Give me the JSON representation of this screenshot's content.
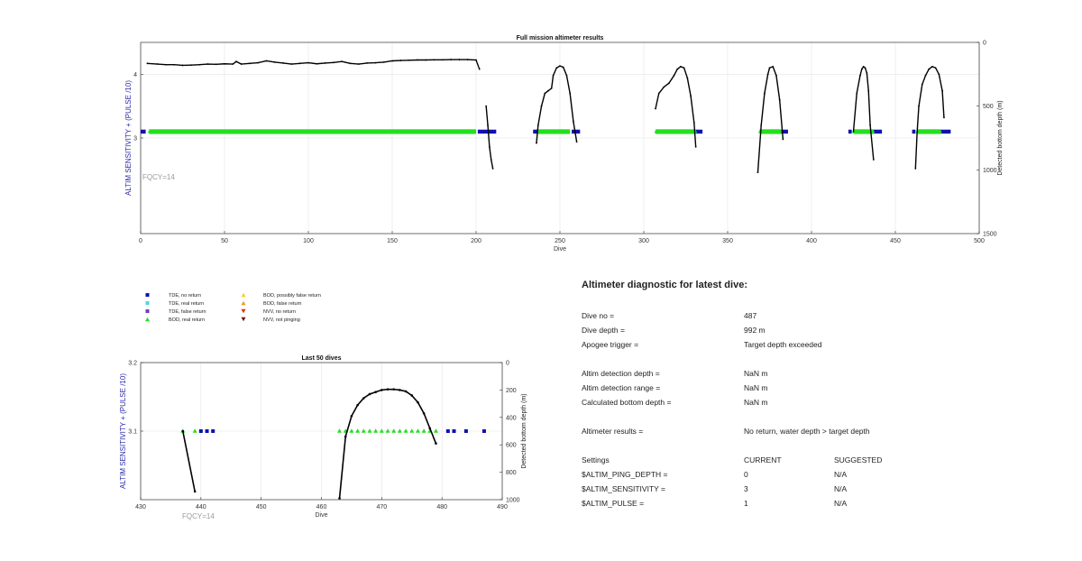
{
  "chart_data": [
    {
      "type": "scatter",
      "title": "Full mission altimeter results",
      "xlabel": "Dive",
      "ylabel": "ALTIM SENSITIVITY + (PULSE /10)",
      "y2label": "Detected bottom depth (m)",
      "xlim": [
        0,
        500
      ],
      "ylim": [
        1.5,
        4.5
      ],
      "y2lim": [
        1500,
        0
      ],
      "xticks": [
        "0",
        "50",
        "100",
        "150",
        "200",
        "250",
        "300",
        "350",
        "400",
        "450",
        "500"
      ],
      "yticks": [
        "3",
        "4"
      ],
      "y2ticks": [
        "0",
        "500",
        "1000",
        "1500"
      ],
      "grid": true,
      "annotation": "FQCY=14",
      "marker_value": 3.1,
      "tde_no_return_ranges": [
        [
          0,
          3
        ],
        [
          201,
          212
        ],
        [
          234,
          237
        ],
        [
          257,
          262
        ],
        [
          331,
          335
        ],
        [
          382,
          386
        ],
        [
          422,
          424
        ],
        [
          437,
          442
        ],
        [
          460,
          462
        ],
        [
          477,
          483
        ]
      ],
      "bod_real_return_ranges": [
        [
          5,
          200
        ],
        [
          237,
          256
        ],
        [
          307,
          331
        ],
        [
          369,
          382
        ],
        [
          425,
          437
        ],
        [
          463,
          477
        ]
      ],
      "depth_series": [
        {
          "dives": [
            4,
            10,
            15,
            20,
            25,
            30,
            35,
            40,
            45,
            50,
            55,
            57,
            60,
            65,
            70,
            75,
            80,
            85,
            90,
            95,
            100,
            105,
            110,
            115,
            120,
            125,
            130,
            135,
            140,
            145,
            150,
            155,
            160,
            165,
            170,
            175,
            180,
            185,
            190,
            195,
            200,
            202
          ],
          "depth": [
            165,
            170,
            175,
            175,
            180,
            178,
            175,
            170,
            172,
            168,
            170,
            150,
            170,
            165,
            160,
            145,
            155,
            162,
            170,
            165,
            160,
            168,
            162,
            158,
            150,
            165,
            170,
            162,
            160,
            155,
            145,
            142,
            140,
            138,
            138,
            137,
            137,
            135,
            135,
            135,
            138,
            210
          ]
        },
        {
          "dives": [
            206,
            207,
            208,
            209,
            210
          ],
          "depth": [
            500,
            650,
            820,
            920,
            990
          ]
        },
        {
          "dives": [
            236,
            237,
            239,
            241,
            243,
            245,
            246,
            248,
            250,
            252,
            254,
            256,
            258,
            260
          ],
          "depth": [
            790,
            650,
            500,
            400,
            380,
            360,
            260,
            200,
            185,
            195,
            260,
            400,
            620,
            780
          ]
        },
        {
          "dives": [
            307,
            309,
            312,
            315,
            318,
            320,
            322,
            324,
            326,
            328,
            330,
            331
          ],
          "depth": [
            520,
            400,
            350,
            320,
            260,
            210,
            190,
            200,
            280,
            420,
            630,
            820
          ]
        },
        {
          "dives": [
            368,
            370,
            372,
            374,
            375,
            377,
            379,
            381,
            383
          ],
          "depth": [
            1020,
            650,
            400,
            250,
            200,
            190,
            260,
            450,
            760
          ]
        },
        {
          "dives": [
            425,
            427,
            429,
            430,
            431,
            432,
            433,
            434,
            435,
            437
          ],
          "depth": [
            700,
            400,
            260,
            210,
            190,
            200,
            240,
            380,
            650,
            920
          ]
        },
        {
          "dives": [
            462,
            463,
            464,
            466,
            468,
            470,
            472,
            474,
            476,
            478,
            479
          ],
          "depth": [
            990,
            700,
            500,
            330,
            260,
            210,
            190,
            200,
            250,
            380,
            590
          ]
        }
      ]
    },
    {
      "type": "scatter",
      "title": "Last 50 dives",
      "xlabel": "Dive",
      "ylabel": "ALTIM SENSITIVITY + (PULSE /10)",
      "y2label": "Detected bottom depth (m)",
      "xlim": [
        430,
        490
      ],
      "ylim": [
        3.0,
        3.2
      ],
      "y2lim": [
        1000,
        0
      ],
      "xticks": [
        "430",
        "440",
        "450",
        "460",
        "470",
        "480",
        "490"
      ],
      "yticks": [
        "3.1",
        "3.2"
      ],
      "y2ticks": [
        "0",
        "200",
        "400",
        "600",
        "800",
        "1000"
      ],
      "grid": true,
      "annotation": "FQCY=14",
      "marker_value": 3.1,
      "tde_no_return_dives": [
        440,
        441,
        442,
        481,
        482,
        484,
        487
      ],
      "bod_real_return_dives": [
        437,
        439,
        463,
        464,
        465,
        466,
        467,
        468,
        469,
        470,
        471,
        472,
        473,
        474,
        475,
        476,
        477,
        478,
        479
      ],
      "depth_series": [
        {
          "dives": [
            437,
            439
          ],
          "depth": [
            500,
            940
          ]
        },
        {
          "dives": [
            463,
            464,
            465,
            466,
            467,
            468,
            469,
            470,
            471,
            472,
            473,
            474,
            475,
            476,
            477,
            478,
            479
          ],
          "depth": [
            990,
            540,
            390,
            310,
            260,
            230,
            215,
            200,
            195,
            195,
            200,
            210,
            240,
            290,
            370,
            480,
            590
          ]
        }
      ]
    }
  ],
  "legend": {
    "col1": [
      "TDE, no return",
      "TDE, real return",
      "TDE, false return",
      "BOD, real return"
    ],
    "col2": [
      "BOD, possibly false return",
      "BOD, false return",
      "NVV, no return",
      "NVV, not pinging"
    ]
  },
  "colors": {
    "tde_no_return": "#1010b0",
    "tde_real_return": "#4fd6e0",
    "tde_false_return": "#6a3fc0",
    "bod_real_return": "#22e01e",
    "bod_possibly_false": "#f5d21e",
    "bod_false_return": "#f29a1a",
    "nvv_no_return": "#d83010",
    "nvv_not_pinging": "#7a1010",
    "depth_line": "#000000"
  },
  "diagnostic": {
    "title": "Altimeter diagnostic for latest dive:",
    "rows": [
      {
        "key": "Dive no =",
        "value": "487"
      },
      {
        "key": "Dive depth =",
        "value": "992 m"
      },
      {
        "key": "Apogee trigger =",
        "value": "Target depth exceeded"
      },
      {
        "key": "Altim detection depth =",
        "value": "NaN m"
      },
      {
        "key": "Altim detection range =",
        "value": "NaN m"
      },
      {
        "key": "Calculated bottom depth =",
        "value": "NaN m"
      },
      {
        "key": "Altimeter results =",
        "value": "No return, water depth > target depth"
      }
    ],
    "settings": {
      "header": "Settings",
      "current_header": "CURRENT",
      "suggested_header": "SUGGESTED",
      "rows": [
        {
          "key": "$ALTIM_PING_DEPTH =",
          "current": "0",
          "suggested": "N/A"
        },
        {
          "key": "$ALTIM_SENSITIVITY =",
          "current": "3",
          "suggested": "N/A"
        },
        {
          "key": "$ALTIM_PULSE =",
          "current": "1",
          "suggested": "N/A"
        }
      ]
    }
  }
}
